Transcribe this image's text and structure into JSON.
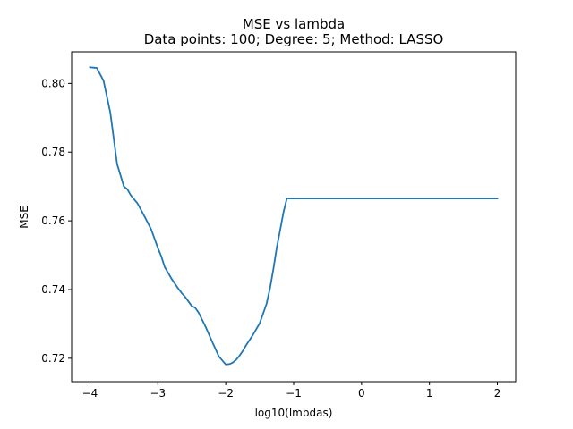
{
  "chart_data": {
    "type": "line",
    "title": "MSE vs lambda",
    "subtitle": "Data points: 100; Degree: 5; Method: LASSO",
    "xlabel": "log10(lmbdas)",
    "ylabel": "MSE",
    "xlim": [
      -4.27,
      2.27
    ],
    "ylim": [
      0.7132,
      0.8092
    ],
    "grid": false,
    "xticks": [
      {
        "value": -4,
        "label": "−4"
      },
      {
        "value": -3,
        "label": "−3"
      },
      {
        "value": -2,
        "label": "−2"
      },
      {
        "value": -1,
        "label": "−1"
      },
      {
        "value": 0,
        "label": "0"
      },
      {
        "value": 1,
        "label": "1"
      },
      {
        "value": 2,
        "label": "2"
      }
    ],
    "yticks": [
      {
        "value": 0.72,
        "label": "0.72"
      },
      {
        "value": 0.74,
        "label": "0.74"
      },
      {
        "value": 0.76,
        "label": "0.76"
      },
      {
        "value": 0.78,
        "label": "0.78"
      },
      {
        "value": 0.8,
        "label": "0.80"
      }
    ],
    "series": [
      {
        "color": "#1f77b4",
        "x": [
          -4.0,
          -3.9,
          -3.8,
          -3.7,
          -3.6,
          -3.5,
          -3.45,
          -3.4,
          -3.3,
          -3.2,
          -3.1,
          -3.0,
          -2.95,
          -2.9,
          -2.8,
          -2.7,
          -2.65,
          -2.6,
          -2.5,
          -2.45,
          -2.4,
          -2.3,
          -2.2,
          -2.1,
          -2.0,
          -1.95,
          -1.9,
          -1.85,
          -1.8,
          -1.75,
          -1.7,
          -1.6,
          -1.5,
          -1.4,
          -1.35,
          -1.3,
          -1.25,
          -1.2,
          -1.15,
          -1.1,
          -1.05,
          -1.0,
          0.0,
          1.0,
          2.0
        ],
        "y": [
          0.8047,
          0.8045,
          0.8008,
          0.7915,
          0.7765,
          0.77,
          0.7692,
          0.7675,
          0.7651,
          0.7614,
          0.7576,
          0.7521,
          0.7497,
          0.7466,
          0.7432,
          0.7403,
          0.739,
          0.7379,
          0.7352,
          0.7347,
          0.7333,
          0.7293,
          0.7248,
          0.7205,
          0.7182,
          0.7183,
          0.7187,
          0.7195,
          0.7207,
          0.7221,
          0.7238,
          0.7268,
          0.7302,
          0.7358,
          0.7402,
          0.7458,
          0.7521,
          0.7572,
          0.7625,
          0.7665,
          0.7665,
          0.7665,
          0.7665,
          0.7665,
          0.7665
        ]
      }
    ]
  }
}
